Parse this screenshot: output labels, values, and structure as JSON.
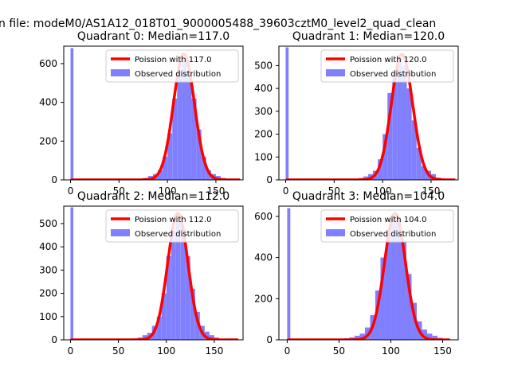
{
  "figure": {
    "suptitle": "n file: modeM0/AS1A12_018T01_9000005488_39603cztM0_level2_quad_clean"
  },
  "colors": {
    "histogram_fill": "#8080ff",
    "poisson_line": "#ff0000",
    "axis": "#000000",
    "background": "#ffffff"
  },
  "chart_data": [
    {
      "type": "bar",
      "title": "Quadrant 0: Median=117.0",
      "xlabel": "",
      "ylabel": "",
      "xlim": [
        -7,
        178
      ],
      "ylim": [
        0,
        690
      ],
      "xticks": [
        0,
        50,
        100,
        150
      ],
      "yticks": [
        0,
        200,
        400,
        600
      ],
      "grid": false,
      "legend_position": "top-right",
      "series": [
        {
          "name": "Poission with 117.0",
          "kind": "line",
          "center": 117.0,
          "peak": 650,
          "x": [
            0,
            82,
            89,
            96,
            103,
            110,
            117,
            124,
            131,
            138,
            145,
            152,
            175
          ],
          "y": [
            0,
            0,
            20,
            100,
            290,
            540,
            650,
            540,
            290,
            100,
            20,
            0,
            0
          ]
        },
        {
          "name": "Observed distribution",
          "kind": "histogram",
          "x": [
            0,
            60,
            70,
            75,
            80,
            85,
            90,
            95,
            100,
            105,
            110,
            115,
            120,
            125,
            130,
            135,
            140,
            145,
            150,
            155
          ],
          "y": [
            680,
            3,
            5,
            10,
            20,
            30,
            50,
            120,
            240,
            420,
            560,
            620,
            560,
            420,
            260,
            120,
            50,
            30,
            20,
            10
          ]
        }
      ]
    },
    {
      "type": "bar",
      "title": "Quadrant 1: Median=120.0",
      "xlabel": "",
      "ylabel": "",
      "xlim": [
        -7,
        178
      ],
      "ylim": [
        0,
        585
      ],
      "xticks": [
        0,
        50,
        100,
        150
      ],
      "yticks": [
        0,
        100,
        200,
        300,
        400,
        500
      ],
      "grid": false,
      "legend_position": "top-right",
      "series": [
        {
          "name": "Poission with 120.0",
          "kind": "line",
          "center": 120.0,
          "peak": 550,
          "x": [
            0,
            85,
            92,
            99,
            106,
            113,
            120,
            127,
            134,
            141,
            148,
            155,
            175
          ],
          "y": [
            0,
            0,
            17,
            85,
            245,
            455,
            550,
            455,
            245,
            85,
            17,
            0,
            0
          ]
        },
        {
          "name": "Observed distribution",
          "kind": "histogram",
          "x": [
            0,
            60,
            70,
            75,
            80,
            85,
            90,
            95,
            100,
            105,
            110,
            115,
            120,
            125,
            130,
            135,
            140,
            145,
            150,
            155
          ],
          "y": [
            580,
            3,
            5,
            8,
            15,
            25,
            40,
            90,
            200,
            380,
            480,
            530,
            500,
            400,
            260,
            140,
            60,
            40,
            25,
            10
          ]
        }
      ]
    },
    {
      "type": "bar",
      "title": "Quadrant 2: Median=112.0",
      "xlabel": "",
      "ylabel": "",
      "xlim": [
        -7,
        180
      ],
      "ylim": [
        0,
        575
      ],
      "xticks": [
        0,
        50,
        100,
        150
      ],
      "yticks": [
        0,
        100,
        200,
        300,
        400,
        500
      ],
      "grid": false,
      "legend_position": "top-right",
      "series": [
        {
          "name": "Poission with 112.0",
          "kind": "line",
          "center": 112.0,
          "peak": 545,
          "x": [
            0,
            77,
            84,
            91,
            98,
            105,
            112,
            119,
            126,
            133,
            140,
            147,
            175
          ],
          "y": [
            0,
            0,
            17,
            84,
            243,
            451,
            545,
            451,
            243,
            84,
            17,
            0,
            0
          ]
        },
        {
          "name": "Observed distribution",
          "kind": "histogram",
          "x": [
            0,
            55,
            65,
            70,
            75,
            80,
            85,
            90,
            95,
            100,
            105,
            110,
            115,
            120,
            125,
            130,
            135,
            140,
            145,
            150
          ],
          "y": [
            570,
            4,
            6,
            10,
            20,
            30,
            60,
            100,
            200,
            360,
            470,
            510,
            480,
            360,
            220,
            120,
            60,
            35,
            20,
            10
          ]
        }
      ]
    },
    {
      "type": "bar",
      "title": "Quadrant 3: Median=104.0",
      "xlabel": "",
      "ylabel": "",
      "xlim": [
        -8,
        165
      ],
      "ylim": [
        0,
        650
      ],
      "xticks": [
        0,
        50,
        100,
        150
      ],
      "yticks": [
        0,
        200,
        400,
        600
      ],
      "grid": false,
      "legend_position": "top-right",
      "series": [
        {
          "name": "Poission with 104.0",
          "kind": "line",
          "center": 104.0,
          "peak": 615,
          "x": [
            0,
            70,
            77,
            84,
            91,
            97,
            104,
            111,
            117,
            124,
            131,
            138,
            157
          ],
          "y": [
            0,
            0,
            19,
            95,
            275,
            510,
            615,
            510,
            275,
            95,
            19,
            0,
            0
          ]
        },
        {
          "name": "Observed distribution",
          "kind": "histogram",
          "x": [
            0,
            40,
            50,
            55,
            60,
            65,
            70,
            75,
            80,
            85,
            90,
            95,
            100,
            105,
            110,
            115,
            120,
            125,
            130,
            135,
            140,
            145
          ],
          "y": [
            640,
            3,
            5,
            8,
            12,
            20,
            30,
            60,
            120,
            240,
            400,
            520,
            600,
            580,
            480,
            320,
            180,
            90,
            50,
            30,
            20,
            10
          ]
        }
      ]
    }
  ]
}
